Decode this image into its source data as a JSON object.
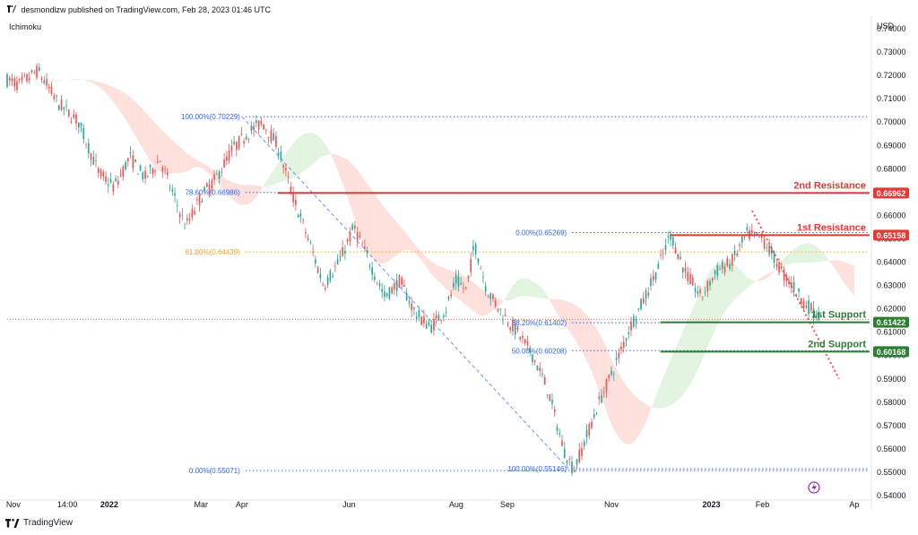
{
  "header": {
    "publisher": "desmondlzw published on TradingView.com, Feb 28, 2023 01:46 UTC",
    "indicator": "Ichimoku",
    "currency": "USD",
    "footer_brand": "TradingView"
  },
  "colors": {
    "up": "#26a69a",
    "down": "#ef5350",
    "resistance": "#e53935",
    "support": "#2e7d32",
    "fib_blue": "#2962ff",
    "fib_orange": "#f5a623",
    "cloud_red": "#fde0dc",
    "cloud_green": "#e2f3e0",
    "price_line": "#ef5350"
  },
  "chart_data": {
    "type": "candlestick",
    "y_axis": {
      "min": 0.54,
      "max": 0.74,
      "ticks": [
        "0.74000",
        "0.73000",
        "0.72000",
        "0.71000",
        "0.70000",
        "0.69000",
        "0.68000",
        "0.67000",
        "0.66000",
        "0.65000",
        "0.64000",
        "0.63000",
        "0.62000",
        "0.61000",
        "0.60000",
        "0.59000",
        "0.58000",
        "0.57000",
        "0.56000",
        "0.55000",
        "0.54000"
      ],
      "tick_values": [
        0.74,
        0.73,
        0.72,
        0.71,
        0.7,
        0.69,
        0.68,
        0.67,
        0.66,
        0.65,
        0.64,
        0.63,
        0.62,
        0.61,
        0.6,
        0.59,
        0.58,
        0.57,
        0.56,
        0.55,
        0.54
      ]
    },
    "x_axis": {
      "labels": [
        "Nov",
        "14:00",
        "2022",
        "Mar",
        "Apr",
        "Jun",
        "Aug",
        "Sep",
        "Nov",
        "2023",
        "Feb",
        "Ap"
      ],
      "bold": [
        false,
        false,
        true,
        false,
        false,
        false,
        false,
        false,
        false,
        true,
        false,
        false
      ],
      "time": [
        0.06,
        0.59,
        1.0,
        1.9,
        2.3,
        3.35,
        4.4,
        4.9,
        5.92,
        6.9,
        7.4,
        8.3
      ]
    },
    "price_path": [
      [
        0.0,
        0.718
      ],
      [
        0.12,
        0.716
      ],
      [
        0.3,
        0.722
      ],
      [
        0.5,
        0.708
      ],
      [
        0.7,
        0.7
      ],
      [
        0.9,
        0.678
      ],
      [
        1.05,
        0.672
      ],
      [
        1.2,
        0.685
      ],
      [
        1.35,
        0.676
      ],
      [
        1.5,
        0.684
      ],
      [
        1.6,
        0.672
      ],
      [
        1.75,
        0.655
      ],
      [
        1.9,
        0.668
      ],
      [
        2.05,
        0.676
      ],
      [
        2.2,
        0.688
      ],
      [
        2.35,
        0.695
      ],
      [
        2.5,
        0.7
      ],
      [
        2.65,
        0.69
      ],
      [
        2.8,
        0.668
      ],
      [
        2.95,
        0.65
      ],
      [
        3.1,
        0.63
      ],
      [
        3.25,
        0.64
      ],
      [
        3.4,
        0.655
      ],
      [
        3.55,
        0.64
      ],
      [
        3.7,
        0.625
      ],
      [
        3.85,
        0.632
      ],
      [
        4.0,
        0.618
      ],
      [
        4.15,
        0.612
      ],
      [
        4.3,
        0.62
      ],
      [
        4.4,
        0.632
      ],
      [
        4.5,
        0.628
      ],
      [
        4.58,
        0.648
      ],
      [
        4.7,
        0.628
      ],
      [
        4.85,
        0.618
      ],
      [
        5.0,
        0.61
      ],
      [
        5.15,
        0.6
      ],
      [
        5.3,
        0.585
      ],
      [
        5.45,
        0.56
      ],
      [
        5.55,
        0.551
      ],
      [
        5.65,
        0.562
      ],
      [
        5.8,
        0.58
      ],
      [
        5.95,
        0.595
      ],
      [
        6.1,
        0.612
      ],
      [
        6.25,
        0.625
      ],
      [
        6.4,
        0.64
      ],
      [
        6.5,
        0.652
      ],
      [
        6.65,
        0.635
      ],
      [
        6.8,
        0.625
      ],
      [
        6.95,
        0.636
      ],
      [
        7.1,
        0.64
      ],
      [
        7.25,
        0.652
      ],
      [
        7.4,
        0.65
      ],
      [
        7.5,
        0.643
      ],
      [
        7.6,
        0.635
      ],
      [
        7.7,
        0.63
      ],
      [
        7.82,
        0.622
      ],
      [
        7.95,
        0.617
      ]
    ],
    "ohlc_sample_note": "",
    "current_price": 0.6155,
    "fibonacci_left": [
      {
        "label": "100.00%(0.70229)",
        "value": 0.70229,
        "color": "fib_blue"
      },
      {
        "label": "78.60%(0.66986)",
        "value": 0.66986,
        "color": "fib_blue"
      },
      {
        "label": "61.80%(0.64439)",
        "value": 0.64439,
        "color": "fib_orange"
      },
      {
        "label": "0.00%(0.55071)",
        "value": 0.55071,
        "color": "fib_blue"
      }
    ],
    "fibonacci_right": [
      {
        "label": "0.00%(0.65269)",
        "value": 0.65269,
        "color": "fib_blue"
      },
      {
        "label": "38.20%(0.61402)",
        "value": 0.61402,
        "color": "fib_blue"
      },
      {
        "label": "50.00%(0.60208)",
        "value": 0.60208,
        "color": "fib_blue"
      },
      {
        "label": "100.00%(0.55146)",
        "value": 0.55146,
        "color": "fib_blue"
      }
    ],
    "levels": [
      {
        "name": "2nd Resistance",
        "value": 0.66962,
        "label": "0.66962",
        "kind": "resistance"
      },
      {
        "name": "1st Resistance",
        "value": 0.65158,
        "label": "0.65158",
        "kind": "resistance"
      },
      {
        "name": "1st Support",
        "value": 0.61422,
        "label": "0.61422",
        "kind": "support"
      },
      {
        "name": "2nd Support",
        "value": 0.60168,
        "label": "0.60168",
        "kind": "support"
      }
    ],
    "dashed_trendline": {
      "from": [
        2.3,
        0.7023
      ],
      "to": [
        5.5,
        0.5514
      ]
    },
    "dotted_downtrend": {
      "from": [
        7.3,
        0.662
      ],
      "to": [
        8.15,
        0.59
      ]
    }
  }
}
